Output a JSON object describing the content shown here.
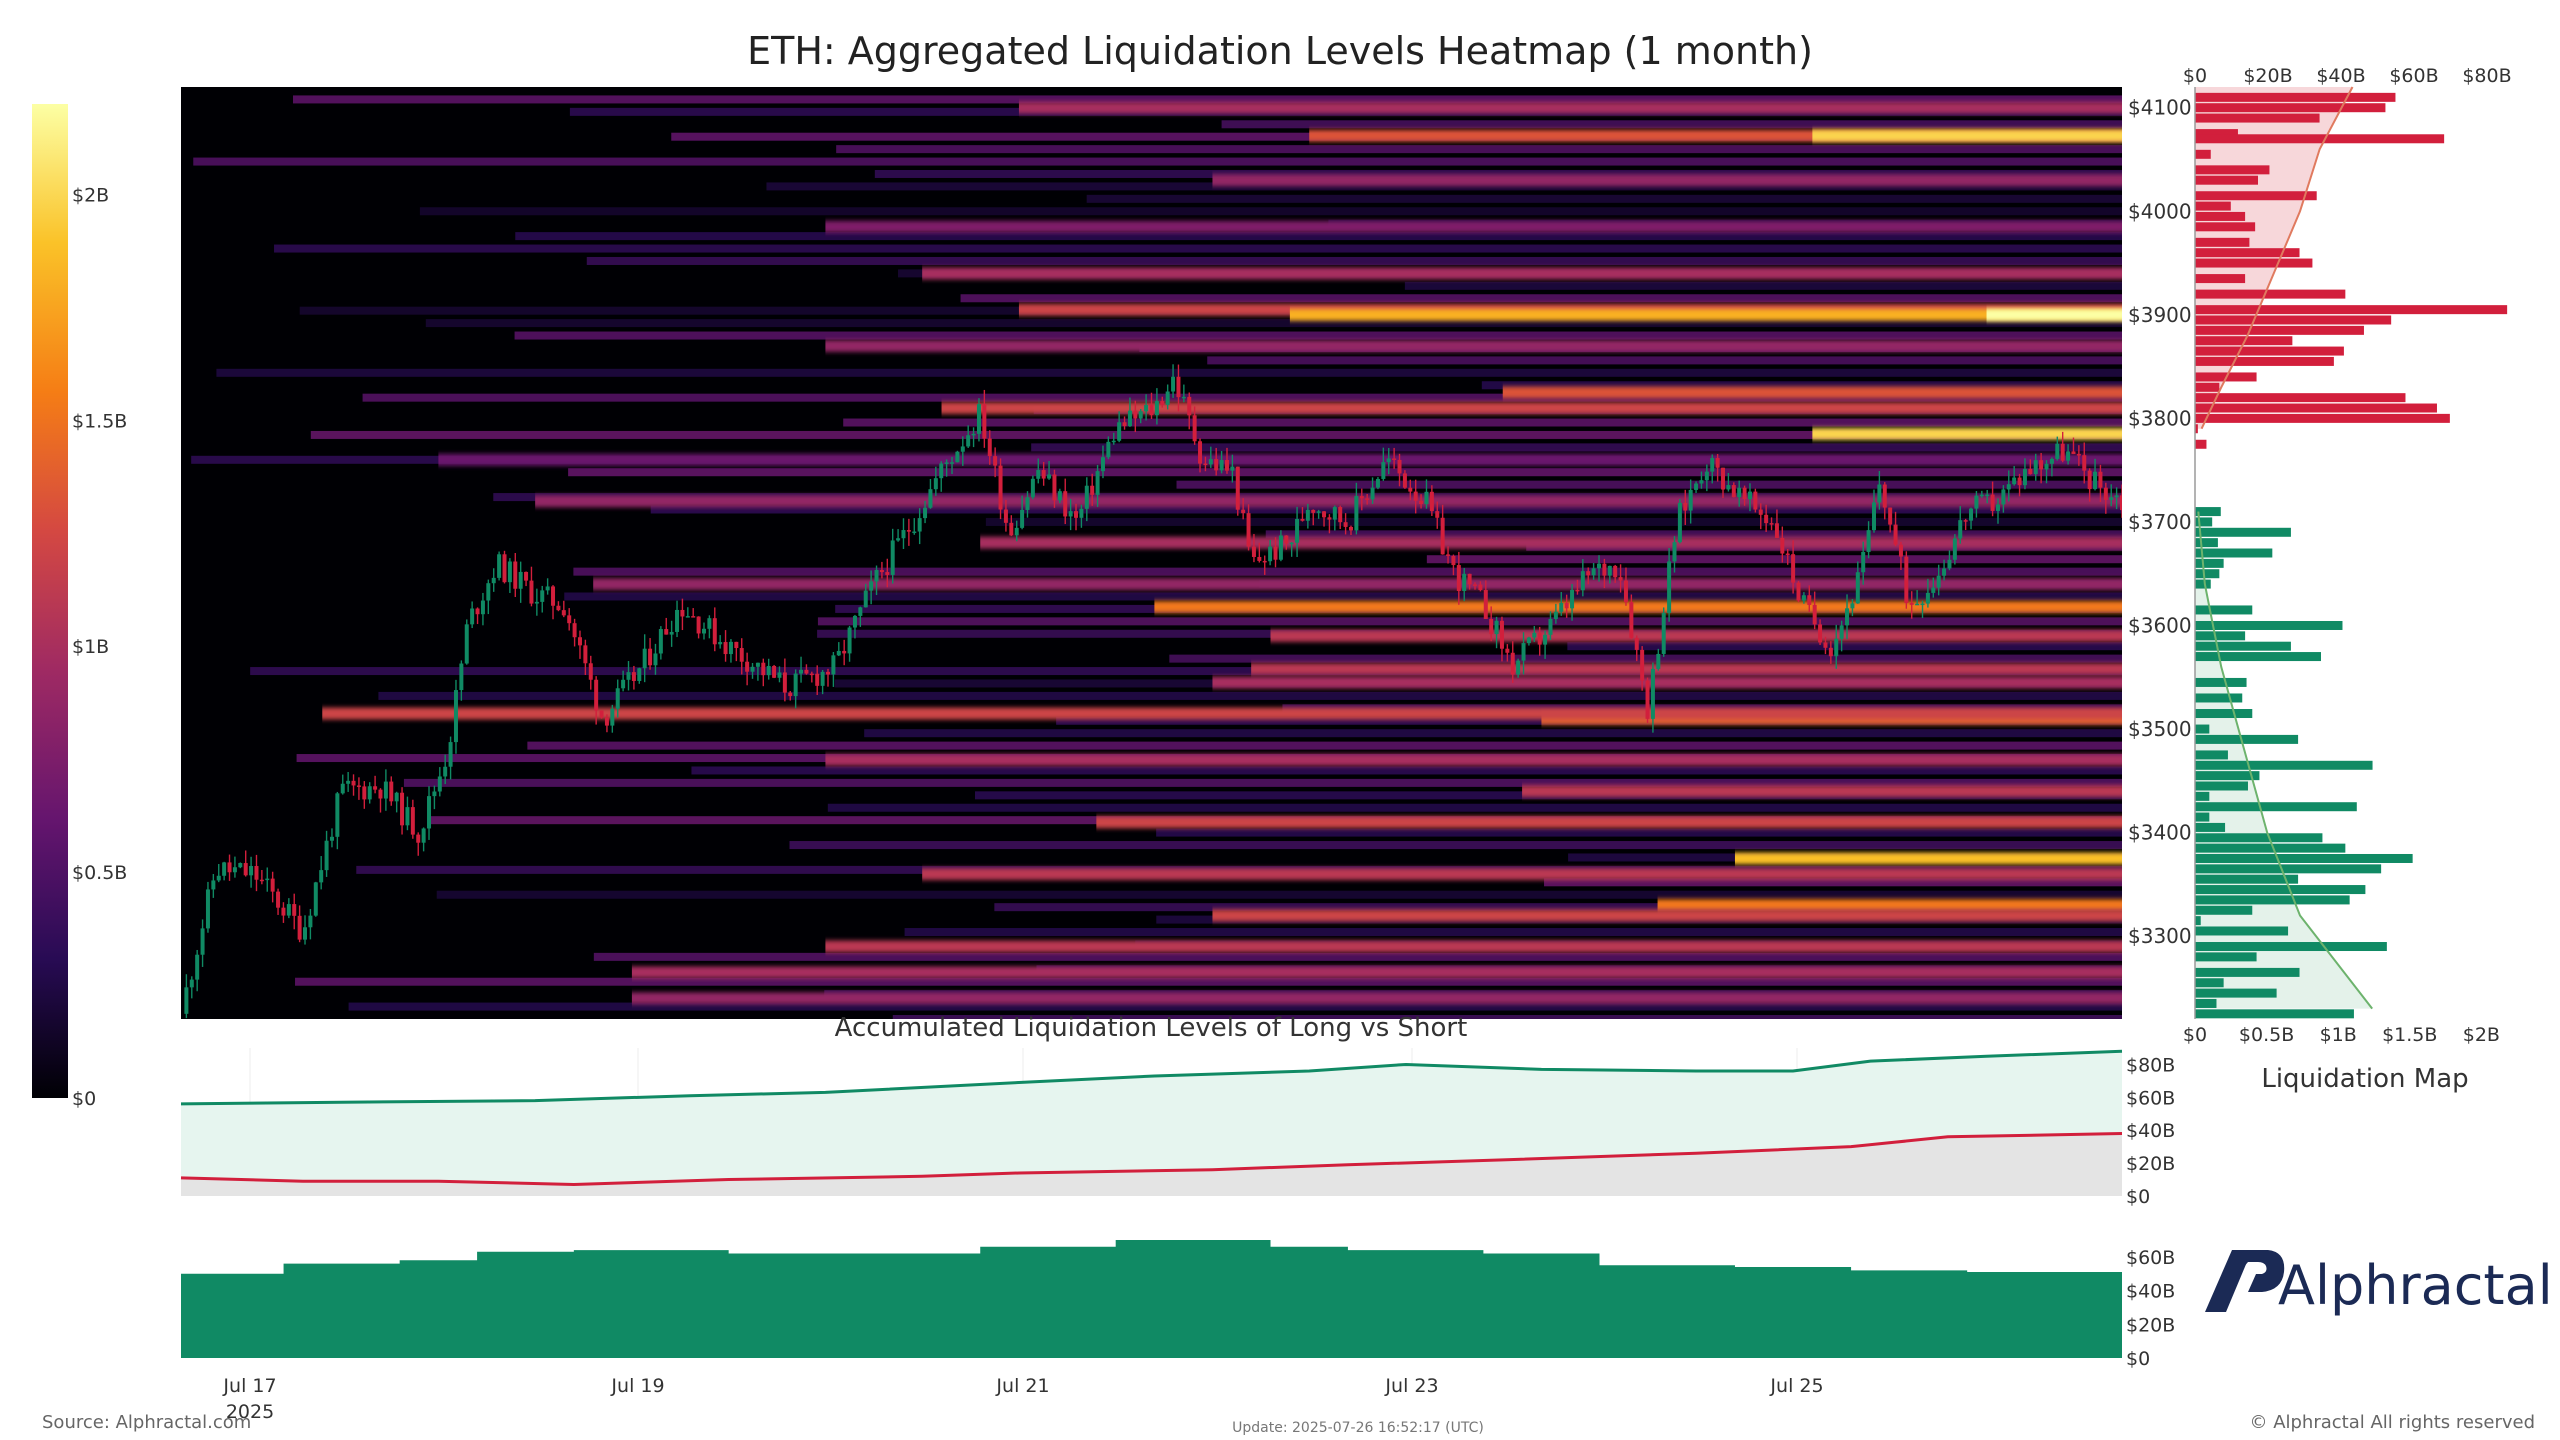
{
  "title": "ETH: Aggregated Liquidation Levels Heatmap (1 month)",
  "subtitle": "Accumulated Liquidation Levels of Long vs Short",
  "side_panel_label": "Liquidation Map",
  "brand_name": "Alphractal",
  "source_text": "Source: Alphractal.com",
  "update_text": "Update: 2025-07-26 16:52:17 (UTC)",
  "copyright_text": "© Alphractal All rights reserved",
  "colors": {
    "long": "#108a64",
    "short": "#d21f3c",
    "short_curve": "#e07a5f",
    "long_curve": "#6db36d",
    "long_fill": "#e6f5ef",
    "short_fill": "#e4e4e4",
    "heat_scale": [
      "#000004",
      "#280b54",
      "#65156e",
      "#9f2a63",
      "#d44842",
      "#f57d15",
      "#fac228",
      "#fcffa4"
    ]
  },
  "chart_data": [
    {
      "type": "heatmap",
      "title": "ETH: Aggregated Liquidation Levels Heatmap (1 month)",
      "x_ticks": [
        "Jul 17",
        "Jul 19",
        "Jul 21",
        "Jul 23",
        "Jul 25"
      ],
      "x_year_label": "2025",
      "x_range_days": [
        16.67,
        26.7
      ],
      "y_ticks": [
        "$3300",
        "$3400",
        "$3500",
        "$3600",
        "$3700",
        "$3800",
        "$3900",
        "$4000",
        "$4100"
      ],
      "ylim": [
        3220,
        4120
      ],
      "colorbar": {
        "range": [
          0,
          2200000000
        ],
        "ticks": [
          "$0",
          "$0.5B",
          "$1B",
          "$1.5B",
          "$2B"
        ]
      },
      "bands": [
        {
          "price": 4100,
          "intensity": 0.45,
          "start_day": 21.0
        },
        {
          "price": 4073,
          "intensity": 0.6,
          "start_day": 22.5
        },
        {
          "price": 4073,
          "intensity": 0.9,
          "start_day": 25.1
        },
        {
          "price": 4030,
          "intensity": 0.4,
          "start_day": 22.0
        },
        {
          "price": 3985,
          "intensity": 0.35,
          "start_day": 20.0
        },
        {
          "price": 3940,
          "intensity": 0.45,
          "start_day": 20.5
        },
        {
          "price": 3905,
          "intensity": 0.55,
          "start_day": 21.0
        },
        {
          "price": 3900,
          "intensity": 0.82,
          "start_day": 22.4
        },
        {
          "price": 3900,
          "intensity": 1.0,
          "start_day": 26.0
        },
        {
          "price": 3870,
          "intensity": 0.4,
          "start_day": 20.0
        },
        {
          "price": 3825,
          "intensity": 0.6,
          "start_day": 23.5
        },
        {
          "price": 3810,
          "intensity": 0.55,
          "start_day": 20.6
        },
        {
          "price": 3785,
          "intensity": 0.9,
          "start_day": 25.1
        },
        {
          "price": 3760,
          "intensity": 0.3,
          "start_day": 18.0
        },
        {
          "price": 3720,
          "intensity": 0.4,
          "start_day": 18.5
        },
        {
          "price": 3680,
          "intensity": 0.45,
          "start_day": 20.8
        },
        {
          "price": 3640,
          "intensity": 0.4,
          "start_day": 18.8
        },
        {
          "price": 3618,
          "intensity": 0.7,
          "start_day": 21.7
        },
        {
          "price": 3590,
          "intensity": 0.5,
          "start_day": 22.3
        },
        {
          "price": 3558,
          "intensity": 0.5,
          "start_day": 22.2
        },
        {
          "price": 3545,
          "intensity": 0.45,
          "start_day": 22.0
        },
        {
          "price": 3510,
          "intensity": 0.65,
          "start_day": 23.7
        },
        {
          "price": 3515,
          "intensity": 0.55,
          "start_day": 17.4
        },
        {
          "price": 3470,
          "intensity": 0.45,
          "start_day": 20.0
        },
        {
          "price": 3440,
          "intensity": 0.5,
          "start_day": 23.6
        },
        {
          "price": 3410,
          "intensity": 0.55,
          "start_day": 21.4
        },
        {
          "price": 3375,
          "intensity": 0.85,
          "start_day": 24.7
        },
        {
          "price": 3360,
          "intensity": 0.5,
          "start_day": 20.5
        },
        {
          "price": 3330,
          "intensity": 0.7,
          "start_day": 24.3
        },
        {
          "price": 3320,
          "intensity": 0.55,
          "start_day": 22.0
        },
        {
          "price": 3290,
          "intensity": 0.5,
          "start_day": 20.0
        },
        {
          "price": 3265,
          "intensity": 0.45,
          "start_day": 19.0
        },
        {
          "price": 3240,
          "intensity": 0.4,
          "start_day": 19.0
        }
      ],
      "price_path": [
        [
          16.67,
          3225
        ],
        [
          16.85,
          3365
        ],
        [
          17.05,
          3360
        ],
        [
          17.3,
          3305
        ],
        [
          17.5,
          3440
        ],
        [
          17.7,
          3445
        ],
        [
          17.9,
          3400
        ],
        [
          18.05,
          3480
        ],
        [
          18.15,
          3600
        ],
        [
          18.3,
          3660
        ],
        [
          18.5,
          3630
        ],
        [
          18.65,
          3620
        ],
        [
          18.85,
          3510
        ],
        [
          19.05,
          3560
        ],
        [
          19.25,
          3620
        ],
        [
          19.5,
          3580
        ],
        [
          19.8,
          3540
        ],
        [
          20.05,
          3560
        ],
        [
          20.25,
          3640
        ],
        [
          20.45,
          3700
        ],
        [
          20.6,
          3750
        ],
        [
          20.8,
          3805
        ],
        [
          20.95,
          3690
        ],
        [
          21.1,
          3750
        ],
        [
          21.3,
          3700
        ],
        [
          21.5,
          3790
        ],
        [
          21.7,
          3810
        ],
        [
          21.8,
          3840
        ],
        [
          21.95,
          3760
        ],
        [
          22.1,
          3750
        ],
        [
          22.2,
          3660
        ],
        [
          22.4,
          3680
        ],
        [
          22.5,
          3720
        ],
        [
          22.7,
          3700
        ],
        [
          22.9,
          3760
        ],
        [
          23.1,
          3720
        ],
        [
          23.25,
          3650
        ],
        [
          23.4,
          3620
        ],
        [
          23.55,
          3560
        ],
        [
          23.75,
          3600
        ],
        [
          23.95,
          3650
        ],
        [
          24.1,
          3660
        ],
        [
          24.25,
          3520
        ],
        [
          24.4,
          3700
        ],
        [
          24.55,
          3760
        ],
        [
          24.75,
          3720
        ],
        [
          24.9,
          3700
        ],
        [
          25.05,
          3620
        ],
        [
          25.2,
          3580
        ],
        [
          25.35,
          3650
        ],
        [
          25.45,
          3740
        ],
        [
          25.6,
          3620
        ],
        [
          25.75,
          3650
        ],
        [
          25.9,
          3710
        ],
        [
          26.05,
          3720
        ],
        [
          26.2,
          3750
        ],
        [
          26.4,
          3770
        ],
        [
          26.55,
          3740
        ],
        [
          26.7,
          3720
        ]
      ]
    },
    {
      "type": "bar",
      "title": "Liquidation Map",
      "orientation": "horizontal",
      "top_axis_ticks": [
        "$0",
        "$20B",
        "$40B",
        "$60B",
        "$80B"
      ],
      "bottom_axis_ticks": [
        "$0",
        "$0.5B",
        "$1B",
        "$1.5B",
        "$2B"
      ],
      "xlim": [
        0,
        2200000000
      ],
      "short_levels": [
        {
          "price": 4110,
          "value": 1400000000
        },
        {
          "price": 4100,
          "value": 1330000000
        },
        {
          "price": 4090,
          "value": 870000000
        },
        {
          "price": 4075,
          "value": 300000000
        },
        {
          "price": 4070,
          "value": 1740000000
        },
        {
          "price": 4055,
          "value": 110000000
        },
        {
          "price": 4040,
          "value": 520000000
        },
        {
          "price": 4030,
          "value": 440000000
        },
        {
          "price": 4015,
          "value": 850000000
        },
        {
          "price": 4005,
          "value": 250000000
        },
        {
          "price": 3995,
          "value": 350000000
        },
        {
          "price": 3985,
          "value": 420000000
        },
        {
          "price": 3970,
          "value": 380000000
        },
        {
          "price": 3960,
          "value": 730000000
        },
        {
          "price": 3950,
          "value": 820000000
        },
        {
          "price": 3935,
          "value": 350000000
        },
        {
          "price": 3920,
          "value": 1050000000
        },
        {
          "price": 3905,
          "value": 2180000000
        },
        {
          "price": 3895,
          "value": 1370000000
        },
        {
          "price": 3885,
          "value": 1180000000
        },
        {
          "price": 3875,
          "value": 680000000
        },
        {
          "price": 3865,
          "value": 1040000000
        },
        {
          "price": 3855,
          "value": 970000000
        },
        {
          "price": 3840,
          "value": 430000000
        },
        {
          "price": 3830,
          "value": 170000000
        },
        {
          "price": 3820,
          "value": 1470000000
        },
        {
          "price": 3810,
          "value": 1690000000
        },
        {
          "price": 3800,
          "value": 1780000000
        },
        {
          "price": 3790,
          "value": 20000000
        },
        {
          "price": 3775,
          "value": 80000000
        }
      ],
      "long_levels": [
        {
          "price": 3710,
          "value": 180000000
        },
        {
          "price": 3700,
          "value": 120000000
        },
        {
          "price": 3690,
          "value": 670000000
        },
        {
          "price": 3680,
          "value": 160000000
        },
        {
          "price": 3670,
          "value": 540000000
        },
        {
          "price": 3660,
          "value": 200000000
        },
        {
          "price": 3650,
          "value": 170000000
        },
        {
          "price": 3640,
          "value": 110000000
        },
        {
          "price": 3615,
          "value": 400000000
        },
        {
          "price": 3600,
          "value": 1030000000
        },
        {
          "price": 3590,
          "value": 350000000
        },
        {
          "price": 3580,
          "value": 670000000
        },
        {
          "price": 3570,
          "value": 880000000
        },
        {
          "price": 3545,
          "value": 360000000
        },
        {
          "price": 3530,
          "value": 330000000
        },
        {
          "price": 3515,
          "value": 400000000
        },
        {
          "price": 3500,
          "value": 100000000
        },
        {
          "price": 3490,
          "value": 720000000
        },
        {
          "price": 3475,
          "value": 230000000
        },
        {
          "price": 3465,
          "value": 1240000000
        },
        {
          "price": 3455,
          "value": 450000000
        },
        {
          "price": 3445,
          "value": 370000000
        },
        {
          "price": 3435,
          "value": 100000000
        },
        {
          "price": 3425,
          "value": 1130000000
        },
        {
          "price": 3415,
          "value": 100000000
        },
        {
          "price": 3405,
          "value": 210000000
        },
        {
          "price": 3395,
          "value": 890000000
        },
        {
          "price": 3385,
          "value": 1050000000
        },
        {
          "price": 3375,
          "value": 1520000000
        },
        {
          "price": 3365,
          "value": 1300000000
        },
        {
          "price": 3355,
          "value": 720000000
        },
        {
          "price": 3345,
          "value": 1190000000
        },
        {
          "price": 3335,
          "value": 1080000000
        },
        {
          "price": 3325,
          "value": 400000000
        },
        {
          "price": 3315,
          "value": 40000000
        },
        {
          "price": 3305,
          "value": 650000000
        },
        {
          "price": 3290,
          "value": 1340000000
        },
        {
          "price": 3280,
          "value": 430000000
        },
        {
          "price": 3265,
          "value": 730000000
        },
        {
          "price": 3255,
          "value": 200000000
        },
        {
          "price": 3245,
          "value": 570000000
        },
        {
          "price": 3235,
          "value": 150000000
        },
        {
          "price": 3225,
          "value": 1110000000
        }
      ],
      "cumulative_short": [
        [
          3790,
          2
        ],
        [
          3830,
          8
        ],
        [
          3880,
          16
        ],
        [
          3940,
          24
        ],
        [
          4000,
          32
        ],
        [
          4060,
          38
        ],
        [
          4120,
          48
        ]
      ],
      "cumulative_long": [
        [
          3710,
          1
        ],
        [
          3640,
          3
        ],
        [
          3560,
          8
        ],
        [
          3480,
          15
        ],
        [
          3400,
          22
        ],
        [
          3320,
          32
        ],
        [
          3230,
          54
        ]
      ]
    },
    {
      "type": "area",
      "title": "Accumulated Liquidation Levels of Long vs Short",
      "y_ticks": [
        "$0",
        "$20B",
        "$40B",
        "$60B",
        "$80B"
      ],
      "ylim": [
        0,
        90
      ],
      "series": [
        {
          "points": [
            [
              16.67,
              56
            ],
            [
              17.5,
              57
            ],
            [
              18.5,
              58
            ],
            [
              19.3,
              61
            ],
            [
              20.0,
              63
            ],
            [
              21.0,
              69
            ],
            [
              21.7,
              73
            ],
            [
              22.5,
              76
            ],
            [
              23.0,
              80
            ],
            [
              23.7,
              77
            ],
            [
              24.5,
              76
            ],
            [
              25.0,
              76
            ],
            [
              25.4,
              82
            ],
            [
              26.0,
              85
            ],
            [
              26.7,
              88
            ]
          ]
        },
        {
          "points": [
            [
              16.67,
              11
            ],
            [
              17.3,
              9
            ],
            [
              18.0,
              9
            ],
            [
              18.7,
              7
            ],
            [
              19.5,
              10
            ],
            [
              20.5,
              12
            ],
            [
              21.0,
              14
            ],
            [
              22.0,
              16
            ],
            [
              22.7,
              19
            ],
            [
              23.5,
              22
            ],
            [
              24.5,
              26
            ],
            [
              25.3,
              30
            ],
            [
              25.8,
              36
            ],
            [
              26.7,
              38
            ]
          ]
        }
      ]
    },
    {
      "type": "area",
      "y_ticks": [
        "$0",
        "$20B",
        "$40B",
        "$60B"
      ],
      "ylim": [
        0,
        70
      ],
      "series": [
        {
          "points": [
            [
              16.67,
              50
            ],
            [
              17.2,
              56
            ],
            [
              17.8,
              58
            ],
            [
              18.2,
              63
            ],
            [
              18.7,
              64
            ],
            [
              19.5,
              62
            ],
            [
              20.2,
              62
            ],
            [
              20.8,
              66
            ],
            [
              21.5,
              70
            ],
            [
              22.3,
              66
            ],
            [
              22.7,
              64
            ],
            [
              23.4,
              62
            ],
            [
              24.0,
              55
            ],
            [
              24.7,
              54
            ],
            [
              25.3,
              52
            ],
            [
              25.9,
              51
            ],
            [
              26.7,
              55
            ]
          ]
        }
      ]
    }
  ]
}
